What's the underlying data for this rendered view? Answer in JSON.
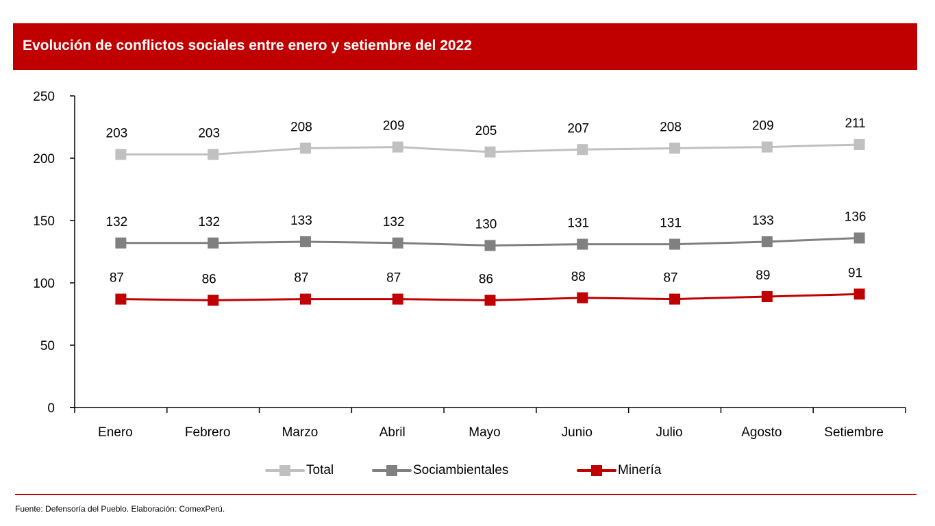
{
  "header": {
    "title": "Evolución de conflictos sociales entre enero y setiembre del 2022"
  },
  "footer": {
    "source": "Fuente: Defensoría del Pueblo. Elaboración: ComexPerú."
  },
  "colors": {
    "brand": "#c00000",
    "total": "#c0c0c0",
    "sociambientales": "#808080",
    "mineria": "#c00000"
  },
  "chart_data": {
    "type": "line",
    "title": "Evolución de conflictos sociales entre enero y setiembre del 2022",
    "xlabel": "",
    "ylabel": "",
    "categories": [
      "Enero",
      "Febrero",
      "Marzo",
      "Abril",
      "Mayo",
      "Junio",
      "Julio",
      "Agosto",
      "Setiembre"
    ],
    "ylim": [
      0,
      250
    ],
    "yticks": [
      0,
      50,
      100,
      150,
      200,
      250
    ],
    "grid": false,
    "legend_position": "bottom",
    "series": [
      {
        "name": "Total",
        "color": "#c0c0c0",
        "marker": "square",
        "values": [
          203,
          203,
          208,
          209,
          205,
          207,
          208,
          209,
          211
        ]
      },
      {
        "name": "Sociambientales",
        "color": "#808080",
        "marker": "square",
        "values": [
          132,
          132,
          133,
          132,
          130,
          131,
          131,
          133,
          136
        ]
      },
      {
        "name": "Minería",
        "color": "#c00000",
        "marker": "square",
        "values": [
          87,
          86,
          87,
          87,
          86,
          88,
          87,
          89,
          91
        ]
      }
    ]
  }
}
